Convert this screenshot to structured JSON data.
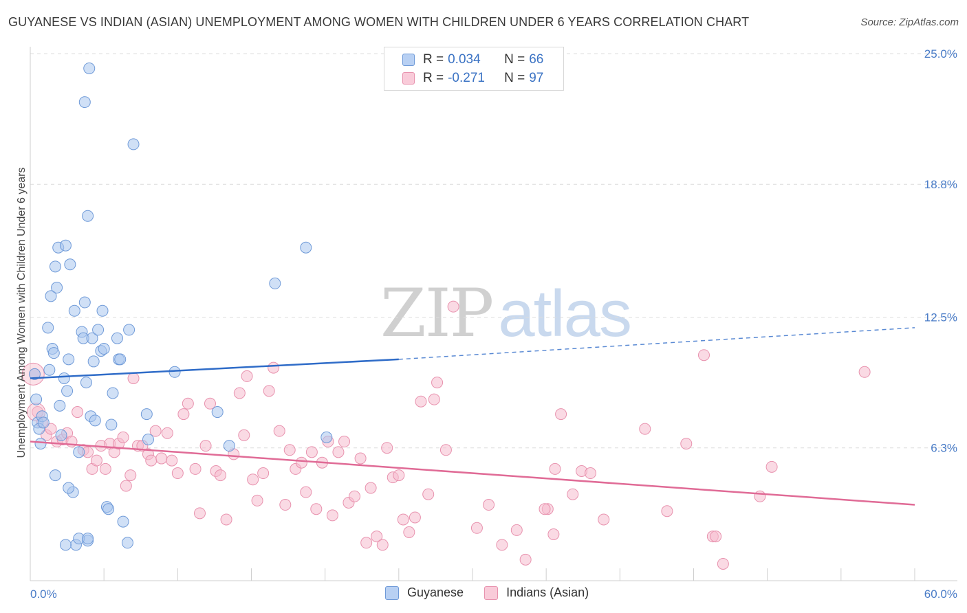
{
  "title": "GUYANESE VS INDIAN (ASIAN) UNEMPLOYMENT AMONG WOMEN WITH CHILDREN UNDER 6 YEARS CORRELATION CHART",
  "source": "Source: ZipAtlas.com",
  "watermark": {
    "zip": "ZIP",
    "atlas": "atlas"
  },
  "legend": {
    "rows": [
      {
        "r_label": "R =",
        "r_value": "0.034",
        "n_label": "N =",
        "n_value": "66"
      },
      {
        "r_label": "R =",
        "r_value": "-0.271",
        "n_label": "N =",
        "n_value": "97"
      }
    ]
  },
  "colors": {
    "guyanese_fill": "#a9c6ef",
    "guyanese_stroke": "#6f9ad8",
    "guyanese_line": "#2f6cc8",
    "indian_fill": "#f6bccd",
    "indian_stroke": "#e892ae",
    "indian_line": "#e06b96",
    "grid": "#dcdcdc",
    "tick_text": "#4a7cc7"
  },
  "chart_data": {
    "type": "scatter",
    "title": "GUYANESE VS INDIAN (ASIAN) UNEMPLOYMENT AMONG WOMEN WITH CHILDREN UNDER 6 YEARS CORRELATION CHART",
    "xlabel": "",
    "ylabel": "Unemployment Among Women with Children Under 6 years",
    "xlim": [
      0,
      60
    ],
    "ylim": [
      0,
      25
    ],
    "x_tick_labels": [
      "0.0%",
      "60.0%"
    ],
    "y_ticks": [
      6.3,
      12.5,
      18.8,
      25.0
    ],
    "y_tick_labels": [
      "6.3%",
      "12.5%",
      "18.8%",
      "25.0%"
    ],
    "grid": true,
    "legend_position": "top-center",
    "series": [
      {
        "name": "Guyanese",
        "r": 0.034,
        "n": 66,
        "trend": {
          "x0": 0,
          "y0": 9.6,
          "x1": 25,
          "y1": 10.5,
          "dashed_to_x": 60,
          "dashed_y": 12.0
        },
        "points": [
          [
            0.3,
            9.8
          ],
          [
            0.4,
            8.6
          ],
          [
            0.5,
            7.5
          ],
          [
            0.6,
            7.2
          ],
          [
            0.7,
            6.5
          ],
          [
            0.8,
            7.8
          ],
          [
            0.9,
            7.5
          ],
          [
            1.2,
            12.0
          ],
          [
            1.3,
            10.0
          ],
          [
            1.4,
            13.5
          ],
          [
            1.5,
            11.0
          ],
          [
            1.6,
            10.8
          ],
          [
            1.7,
            14.9
          ],
          [
            1.8,
            13.9
          ],
          [
            1.9,
            15.8
          ],
          [
            2.0,
            8.3
          ],
          [
            2.1,
            6.9
          ],
          [
            2.3,
            9.6
          ],
          [
            2.4,
            15.9
          ],
          [
            2.5,
            9.0
          ],
          [
            2.6,
            10.5
          ],
          [
            2.7,
            15.0
          ],
          [
            2.9,
            4.2
          ],
          [
            3.0,
            12.8
          ],
          [
            3.1,
            1.7
          ],
          [
            3.3,
            6.1
          ],
          [
            3.5,
            11.8
          ],
          [
            3.6,
            11.5
          ],
          [
            3.7,
            13.2
          ],
          [
            3.8,
            9.4
          ],
          [
            3.9,
            1.9
          ],
          [
            4.1,
            7.8
          ],
          [
            4.2,
            11.5
          ],
          [
            4.3,
            10.4
          ],
          [
            4.4,
            7.6
          ],
          [
            4.6,
            11.9
          ],
          [
            4.8,
            10.9
          ],
          [
            4.9,
            12.8
          ],
          [
            5.0,
            11.0
          ],
          [
            5.2,
            3.5
          ],
          [
            5.3,
            3.4
          ],
          [
            5.5,
            7.4
          ],
          [
            5.6,
            8.9
          ],
          [
            5.9,
            11.5
          ],
          [
            6.0,
            10.5
          ],
          [
            6.1,
            10.5
          ],
          [
            6.3,
            2.8
          ],
          [
            6.6,
            1.8
          ],
          [
            6.7,
            11.9
          ],
          [
            7.0,
            20.7
          ],
          [
            7.9,
            7.9
          ],
          [
            8.0,
            6.7
          ],
          [
            9.8,
            9.9
          ],
          [
            12.7,
            8.0
          ],
          [
            13.5,
            6.4
          ],
          [
            16.6,
            14.1
          ],
          [
            18.7,
            15.8
          ],
          [
            20.1,
            6.8
          ],
          [
            1.7,
            5.0
          ],
          [
            2.6,
            4.4
          ],
          [
            3.3,
            2.0
          ],
          [
            3.9,
            2.0
          ],
          [
            4.0,
            24.3
          ],
          [
            3.7,
            22.7
          ],
          [
            3.9,
            17.3
          ],
          [
            2.4,
            1.7
          ]
        ]
      },
      {
        "name": "Indians (Asian)",
        "r": -0.271,
        "n": 97,
        "trend": {
          "x0": 0,
          "y0": 6.6,
          "x1": 60,
          "y1": 3.6
        },
        "points": [
          [
            0.3,
            9.8
          ],
          [
            0.5,
            8.0
          ],
          [
            0.8,
            7.5
          ],
          [
            1.1,
            6.9
          ],
          [
            1.4,
            7.2
          ],
          [
            1.8,
            6.6
          ],
          [
            2.2,
            6.7
          ],
          [
            2.5,
            7.0
          ],
          [
            2.8,
            6.6
          ],
          [
            3.2,
            8.0
          ],
          [
            3.6,
            6.2
          ],
          [
            3.9,
            6.1
          ],
          [
            4.2,
            5.3
          ],
          [
            4.5,
            5.7
          ],
          [
            4.8,
            6.4
          ],
          [
            5.1,
            5.3
          ],
          [
            5.4,
            6.5
          ],
          [
            5.7,
            6.1
          ],
          [
            6.0,
            6.5
          ],
          [
            6.3,
            6.8
          ],
          [
            6.5,
            4.5
          ],
          [
            6.8,
            5.0
          ],
          [
            7.0,
            9.6
          ],
          [
            7.3,
            6.4
          ],
          [
            7.6,
            6.4
          ],
          [
            8.0,
            6.0
          ],
          [
            8.2,
            5.7
          ],
          [
            8.5,
            7.1
          ],
          [
            8.9,
            5.8
          ],
          [
            9.3,
            7.0
          ],
          [
            9.6,
            5.7
          ],
          [
            10.0,
            5.1
          ],
          [
            10.4,
            7.9
          ],
          [
            10.7,
            8.4
          ],
          [
            11.2,
            5.3
          ],
          [
            11.5,
            3.2
          ],
          [
            11.9,
            6.4
          ],
          [
            12.2,
            8.4
          ],
          [
            12.6,
            5.2
          ],
          [
            12.9,
            5.0
          ],
          [
            13.3,
            2.9
          ],
          [
            13.8,
            6.0
          ],
          [
            14.2,
            8.9
          ],
          [
            14.5,
            6.9
          ],
          [
            14.7,
            9.7
          ],
          [
            15.1,
            4.8
          ],
          [
            15.4,
            3.8
          ],
          [
            15.8,
            5.1
          ],
          [
            16.2,
            9.0
          ],
          [
            16.5,
            10.1
          ],
          [
            16.9,
            7.1
          ],
          [
            17.3,
            3.6
          ],
          [
            17.6,
            6.2
          ],
          [
            18.0,
            5.3
          ],
          [
            18.4,
            5.6
          ],
          [
            18.7,
            4.2
          ],
          [
            19.1,
            6.1
          ],
          [
            19.4,
            3.4
          ],
          [
            19.8,
            5.6
          ],
          [
            20.2,
            6.6
          ],
          [
            20.5,
            3.1
          ],
          [
            20.9,
            6.1
          ],
          [
            21.3,
            6.6
          ],
          [
            21.6,
            3.7
          ],
          [
            22.0,
            4.0
          ],
          [
            22.4,
            5.8
          ],
          [
            22.8,
            1.8
          ],
          [
            23.1,
            4.4
          ],
          [
            23.5,
            2.1
          ],
          [
            23.9,
            1.7
          ],
          [
            24.2,
            6.3
          ],
          [
            24.6,
            4.9
          ],
          [
            25.0,
            5.0
          ],
          [
            25.3,
            2.9
          ],
          [
            25.7,
            2.3
          ],
          [
            26.1,
            3.0
          ],
          [
            26.5,
            8.5
          ],
          [
            27.0,
            4.1
          ],
          [
            27.6,
            9.4
          ],
          [
            28.2,
            6.2
          ],
          [
            28.7,
            13.0
          ],
          [
            30.3,
            2.5
          ],
          [
            31.1,
            3.6
          ],
          [
            32.0,
            1.7
          ],
          [
            33.0,
            2.4
          ],
          [
            33.6,
            1.0
          ],
          [
            35.1,
            3.4
          ],
          [
            35.5,
            2.2
          ],
          [
            36.0,
            7.9
          ],
          [
            36.8,
            4.1
          ],
          [
            37.4,
            5.2
          ],
          [
            38.0,
            5.1
          ],
          [
            38.9,
            2.9
          ],
          [
            41.7,
            7.2
          ],
          [
            43.2,
            3.3
          ],
          [
            44.5,
            6.5
          ],
          [
            47.0,
            0.8
          ]
        ]
      }
    ],
    "extra_points_indian": [
      [
        27.4,
        8.6
      ],
      [
        45.7,
        10.7
      ],
      [
        49.5,
        4.0
      ],
      [
        50.3,
        5.4
      ],
      [
        56.6,
        9.9
      ],
      [
        35.6,
        5.3
      ],
      [
        46.3,
        2.1
      ],
      [
        46.5,
        2.1
      ],
      [
        34.9,
        3.4
      ]
    ]
  }
}
